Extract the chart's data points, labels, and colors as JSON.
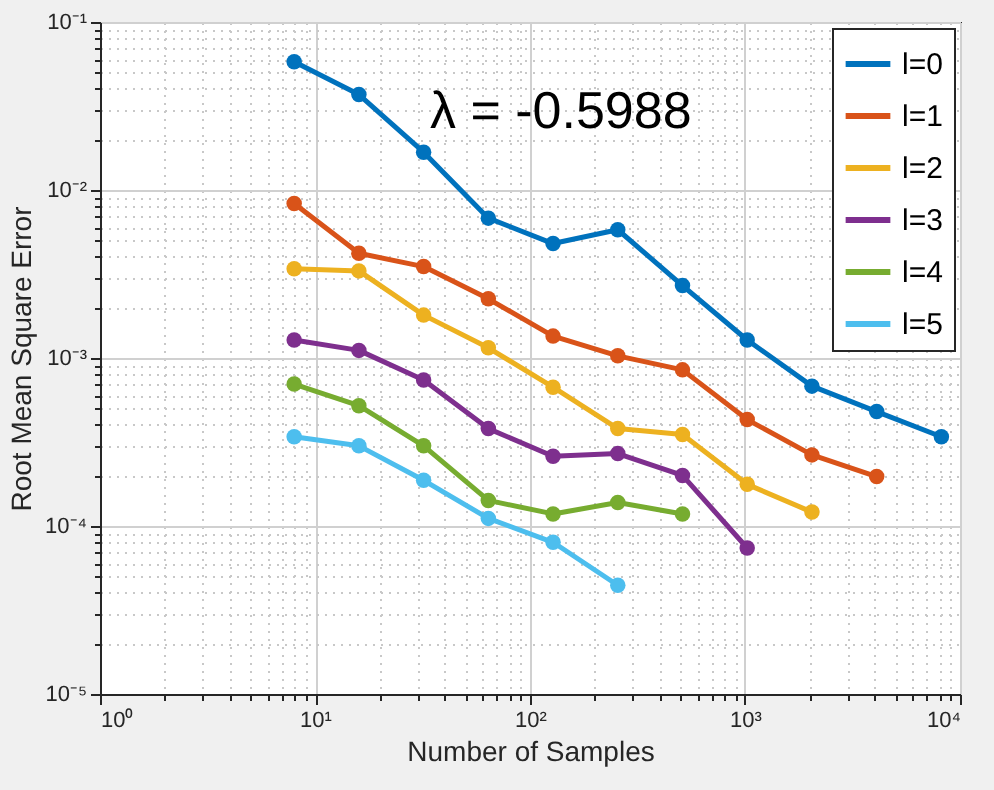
{
  "chart_data": {
    "type": "line",
    "xlabel": "Number of Samples",
    "ylabel": "Root Mean Square Error",
    "log": "xy",
    "grid": true,
    "legend": "top right",
    "marker": "circle",
    "line_style": "solid",
    "xlim": [
      1,
      10000
    ],
    "ylim": [
      1e-05,
      0.1
    ],
    "xticks": [
      {
        "value": 1,
        "label": "10⁰"
      },
      {
        "value": 10,
        "label": "10¹"
      },
      {
        "value": 100,
        "label": "10²"
      },
      {
        "value": 1000,
        "label": "10³"
      },
      {
        "value": 10000,
        "label": "10⁴"
      }
    ],
    "yticks": [
      {
        "value": 1e-05,
        "label": "10⁻⁵"
      },
      {
        "value": 0.0001,
        "label": "10⁻⁴"
      },
      {
        "value": 0.001,
        "label": "10⁻³"
      },
      {
        "value": 0.01,
        "label": "10⁻²"
      },
      {
        "value": 0.1,
        "label": "10⁻¹"
      }
    ],
    "annotations": [
      "λ = -0.5988"
    ],
    "series": [
      {
        "name": "l=0",
        "color": "#0072bd",
        "x": [
          8,
          16,
          32,
          64,
          128,
          256,
          512,
          1024,
          2048,
          4096,
          8192
        ],
        "values": [
          0.058,
          0.037,
          0.0168,
          0.0068,
          0.0048,
          0.0058,
          0.0027,
          0.00128,
          0.00068,
          0.00048,
          0.00034
        ]
      },
      {
        "name": "l=1",
        "color": "#d95319",
        "x": [
          8,
          16,
          32,
          64,
          128,
          256,
          512,
          1024,
          2048,
          4096
        ],
        "values": [
          0.0083,
          0.0042,
          0.0035,
          0.00225,
          0.00135,
          0.00103,
          0.00085,
          0.00043,
          0.000265,
          0.000197
        ]
      },
      {
        "name": "l=2",
        "color": "#edb120",
        "x": [
          8,
          16,
          32,
          64,
          128,
          256,
          512,
          1024,
          2048
        ],
        "values": [
          0.0034,
          0.0033,
          0.0018,
          0.00115,
          0.00067,
          0.00038,
          0.00035,
          0.000177,
          0.000121
        ]
      },
      {
        "name": "l=3",
        "color": "#7e2f8e",
        "x": [
          8,
          16,
          32,
          64,
          128,
          256,
          512,
          1024
        ],
        "values": [
          0.00128,
          0.00111,
          0.00074,
          0.00038,
          0.00026,
          0.00027,
          0.0002,
          7.4e-05
        ]
      },
      {
        "name": "l=4",
        "color": "#77ac30",
        "x": [
          8,
          16,
          32,
          64,
          128,
          256,
          512
        ],
        "values": [
          0.0007,
          0.00052,
          0.0003,
          0.000142,
          0.000118,
          0.000138,
          0.000118
        ]
      },
      {
        "name": "l=5",
        "color": "#4dbeee",
        "x": [
          8,
          16,
          32,
          64,
          128,
          256
        ],
        "values": [
          0.00034,
          0.0003,
          0.000187,
          0.000111,
          8e-05,
          4.44e-05
        ]
      }
    ]
  }
}
